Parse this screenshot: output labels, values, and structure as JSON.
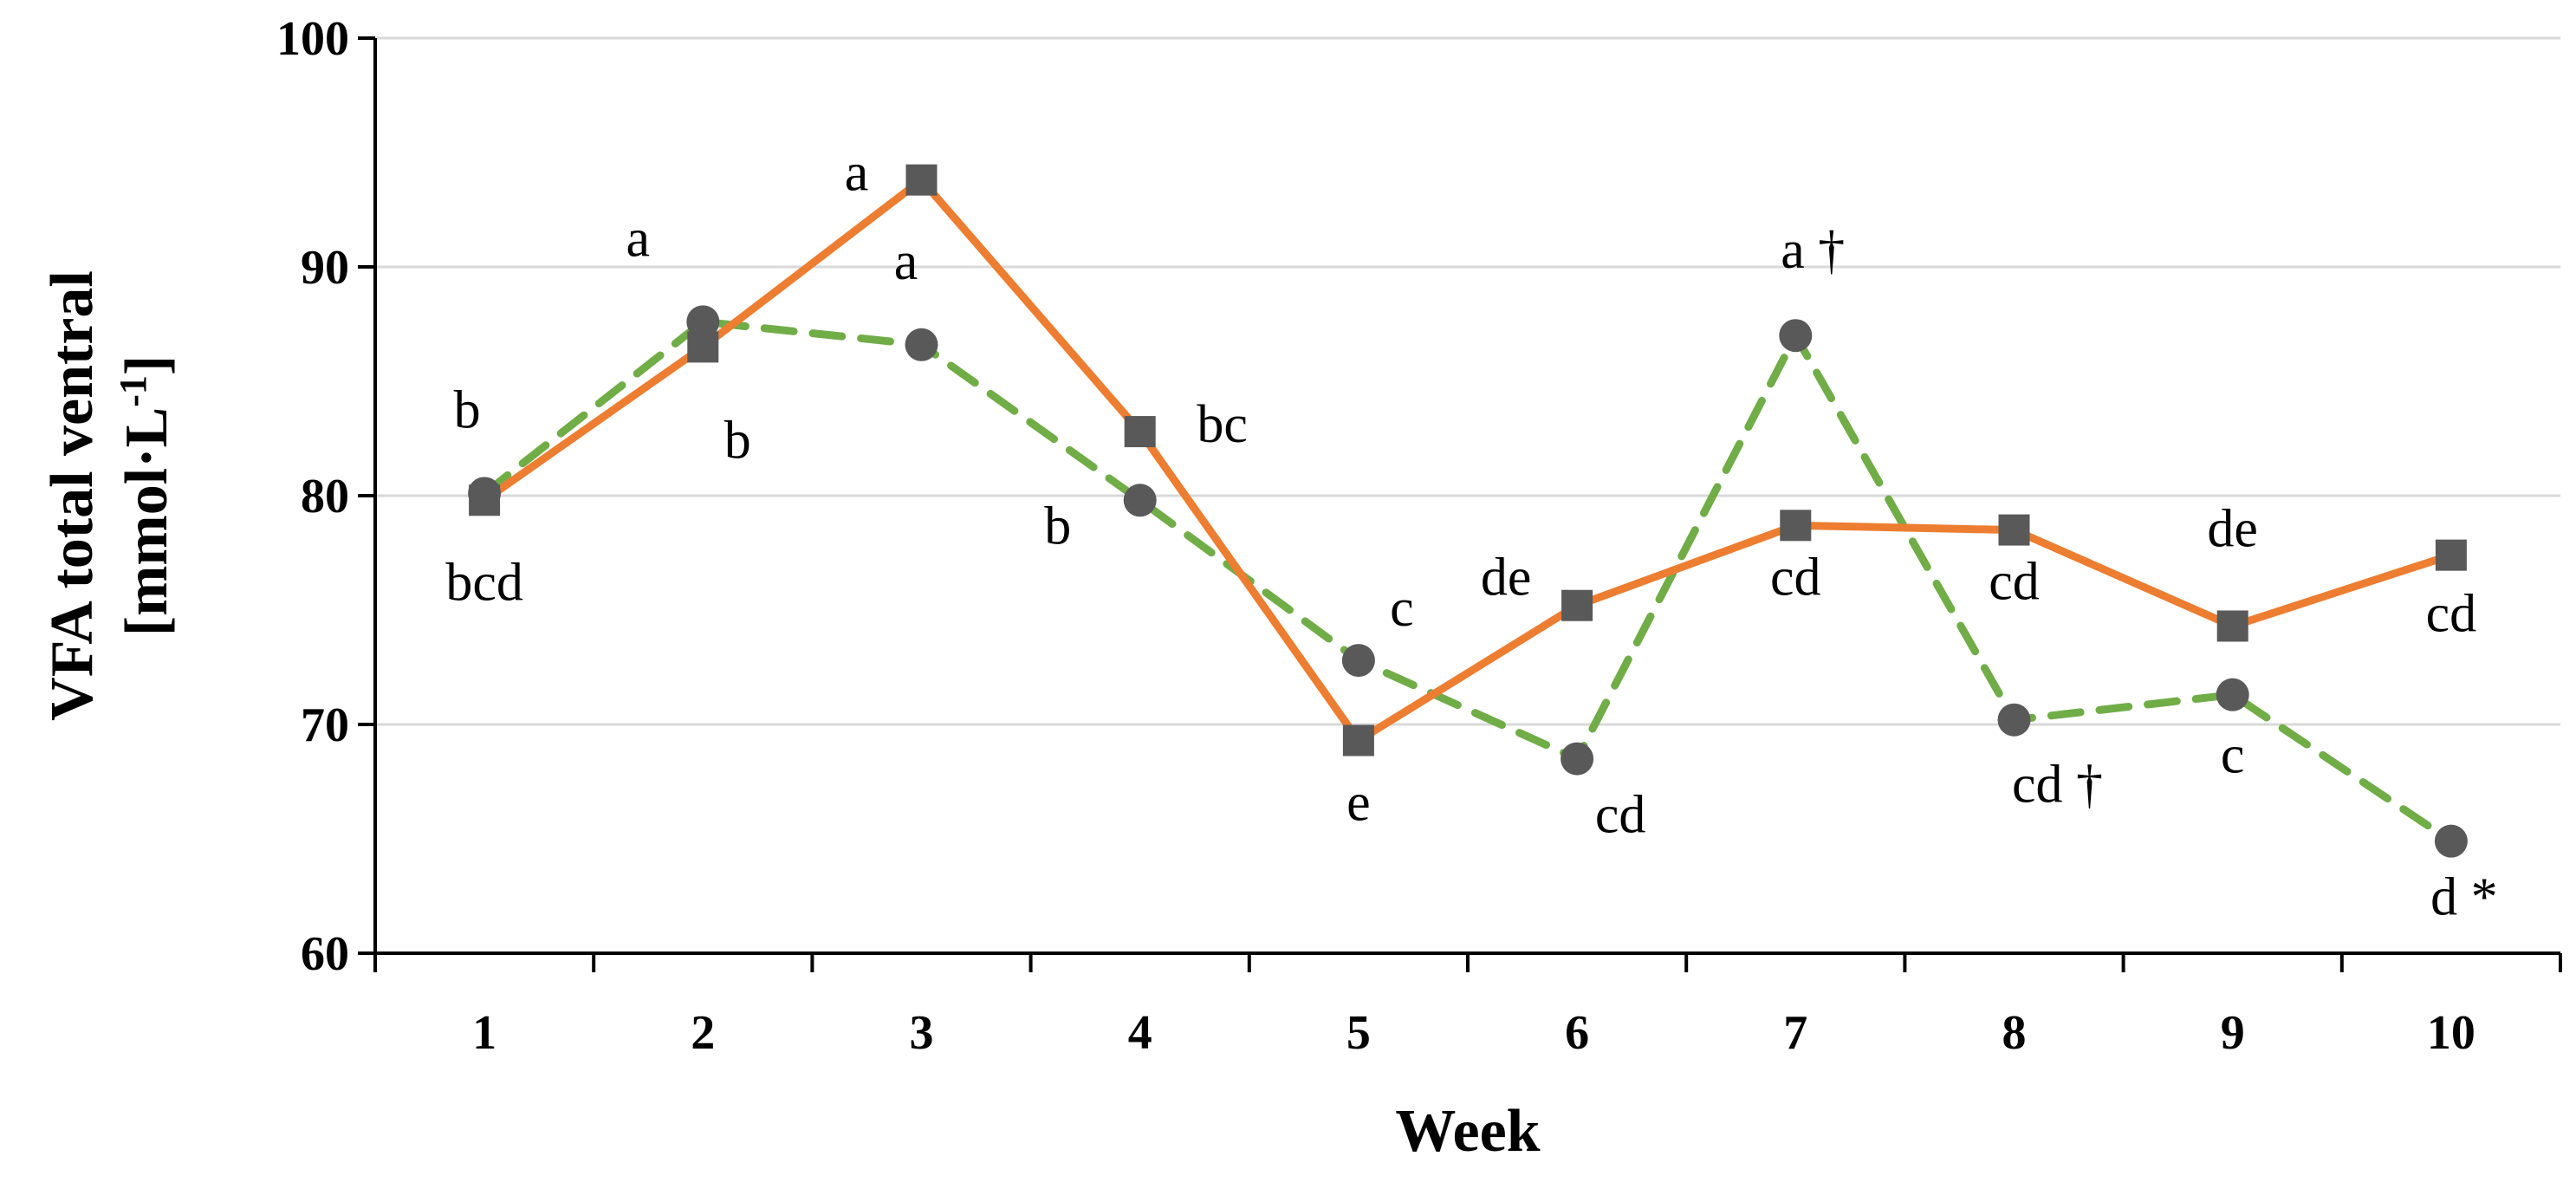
{
  "chart_data": {
    "type": "line",
    "title": "",
    "xlabel": "Week",
    "ylabel_line1": "VFA total ventral",
    "ylabel_unit_main": "[mmol·L",
    "ylabel_unit_sup": "-1",
    "ylabel_unit_close": "]",
    "ylim": [
      60,
      100
    ],
    "yticks": [
      60,
      70,
      80,
      90,
      100
    ],
    "grid": true,
    "categories": [
      "1",
      "2",
      "3",
      "4",
      "5",
      "6",
      "7",
      "8",
      "9",
      "10"
    ],
    "series": [
      {
        "name": "square-solid",
        "color": "#ED7D31",
        "marker": "square",
        "marker_color": "#595959",
        "line_style": "solid",
        "values": [
          79.8,
          86.5,
          93.8,
          82.8,
          69.3,
          75.2,
          78.7,
          78.5,
          74.3,
          77.4
        ],
        "labels": [
          "bcd",
          "b",
          "a",
          "bc",
          "e",
          "de",
          "cd",
          "cd",
          "de",
          "cd"
        ]
      },
      {
        "name": "circle-dashed",
        "color": "#70AD47",
        "marker": "circle",
        "marker_color": "#595959",
        "line_style": "dashed",
        "values": [
          80.1,
          87.6,
          86.6,
          79.8,
          72.8,
          68.5,
          87.0,
          70.2,
          71.3,
          64.9
        ],
        "labels": [
          "b",
          "a",
          "a",
          "b",
          "c",
          "cd",
          "a †",
          "cd †",
          "c",
          "d *"
        ]
      }
    ]
  }
}
